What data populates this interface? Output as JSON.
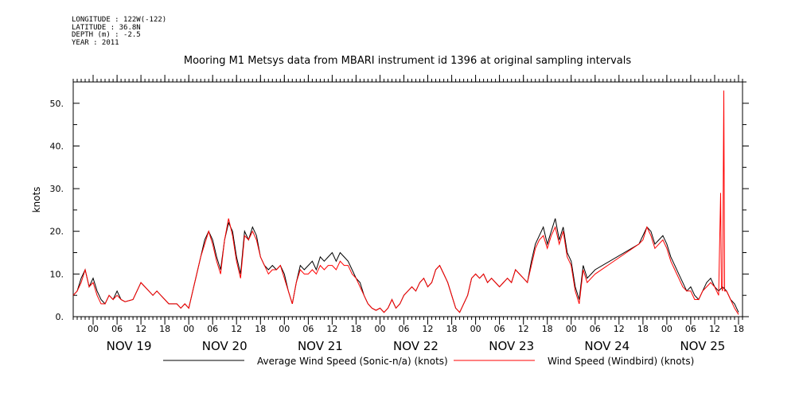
{
  "meta": {
    "longitude": "LONGITUDE : 122W(-122)",
    "latitude": "LATITUDE : 36.8N",
    "depth": "DEPTH (m) : -2.5",
    "year": "YEAR : 2011"
  },
  "chart_data": {
    "type": "line",
    "title": "Mooring M1 Metsys data from MBARI instrument id 1396 at original sampling intervals",
    "ylabel": "knots",
    "xlabel": "",
    "ylim": [
      0,
      55
    ],
    "y_ticks": [
      "0.",
      "10.",
      "20.",
      "30.",
      "40.",
      "50."
    ],
    "x_hours_labels": [
      "00",
      "06",
      "12",
      "18",
      "00",
      "06",
      "12",
      "18",
      "00",
      "06",
      "12",
      "18",
      "00",
      "06",
      "12",
      "18",
      "00",
      "06",
      "12",
      "18",
      "00",
      "06",
      "12",
      "18",
      "00",
      "06",
      "12",
      "18"
    ],
    "day_labels": [
      "NOV 19",
      "NOV 20",
      "NOV 21",
      "NOV 22",
      "NOV 23",
      "NOV 24",
      "NOV 25"
    ],
    "x_unit": "hours since NOV 19 00:00",
    "xlim": [
      -5,
      163
    ],
    "legend": [
      "Average Wind Speed (Sonic-n/a) (knots)",
      "Wind Speed (Windbird) (knots)"
    ],
    "legend_position": "bottom",
    "grid": false,
    "series": [
      {
        "name": "Average Wind Speed (Sonic-n/a) (knots)",
        "color": "#000000",
        "points": [
          [
            -5,
            5
          ],
          [
            -4,
            6
          ],
          [
            -3,
            9
          ],
          [
            -2,
            11
          ],
          [
            -1,
            7
          ],
          [
            0,
            9
          ],
          [
            1,
            6
          ],
          [
            2,
            4
          ],
          [
            3,
            3
          ],
          [
            4,
            5
          ],
          [
            5,
            4
          ],
          [
            6,
            6
          ],
          [
            7,
            4
          ],
          [
            8,
            3.5
          ],
          [
            10,
            4
          ],
          [
            11,
            6
          ],
          [
            12,
            8
          ],
          [
            13,
            7
          ],
          [
            14,
            6
          ],
          [
            15,
            5
          ],
          [
            16,
            6
          ],
          [
            17,
            5
          ],
          [
            18,
            4
          ],
          [
            19,
            3
          ],
          [
            20,
            3
          ],
          [
            21,
            3
          ],
          [
            22,
            2
          ],
          [
            23,
            3
          ],
          [
            24,
            2
          ],
          [
            25,
            6
          ],
          [
            26,
            10
          ],
          [
            27,
            14
          ],
          [
            28,
            18
          ],
          [
            29,
            20
          ],
          [
            30,
            18
          ],
          [
            31,
            14
          ],
          [
            32,
            11
          ],
          [
            33,
            18
          ],
          [
            34,
            22
          ],
          [
            35,
            20
          ],
          [
            36,
            14
          ],
          [
            37,
            10
          ],
          [
            38,
            20
          ],
          [
            39,
            18
          ],
          [
            40,
            21
          ],
          [
            41,
            19
          ],
          [
            42,
            14
          ],
          [
            43,
            12
          ],
          [
            44,
            11
          ],
          [
            45,
            12
          ],
          [
            46,
            11
          ],
          [
            47,
            12
          ],
          [
            48,
            10
          ],
          [
            49,
            6
          ],
          [
            50,
            3
          ],
          [
            51,
            8
          ],
          [
            52,
            12
          ],
          [
            53,
            11
          ],
          [
            54,
            12
          ],
          [
            55,
            13
          ],
          [
            56,
            11
          ],
          [
            57,
            14
          ],
          [
            58,
            13
          ],
          [
            59,
            14
          ],
          [
            60,
            15
          ],
          [
            61,
            13
          ],
          [
            62,
            15
          ],
          [
            63,
            14
          ],
          [
            64,
            13
          ],
          [
            65,
            11
          ],
          [
            66,
            9
          ],
          [
            67,
            8
          ],
          [
            68,
            5
          ],
          [
            69,
            3
          ],
          [
            70,
            2
          ],
          [
            71,
            1.5
          ],
          [
            72,
            2
          ],
          [
            73,
            1
          ],
          [
            74,
            2
          ],
          [
            75,
            4
          ],
          [
            76,
            2
          ],
          [
            77,
            3
          ],
          [
            78,
            5
          ],
          [
            79,
            6
          ],
          [
            80,
            7
          ],
          [
            81,
            6
          ],
          [
            82,
            8
          ],
          [
            83,
            9
          ],
          [
            84,
            7
          ],
          [
            85,
            8
          ],
          [
            86,
            11
          ],
          [
            87,
            12
          ],
          [
            88,
            10
          ],
          [
            89,
            8
          ],
          [
            90,
            5
          ],
          [
            91,
            2
          ],
          [
            92,
            1
          ],
          [
            93,
            3
          ],
          [
            94,
            5
          ],
          [
            95,
            9
          ],
          [
            96,
            10
          ],
          [
            97,
            9
          ],
          [
            98,
            10
          ],
          [
            99,
            8
          ],
          [
            100,
            9
          ],
          [
            101,
            8
          ],
          [
            102,
            7
          ],
          [
            103,
            8
          ],
          [
            104,
            9
          ],
          [
            105,
            8
          ],
          [
            106,
            11
          ],
          [
            107,
            10
          ],
          [
            108,
            9
          ],
          [
            109,
            8
          ],
          [
            110,
            13
          ],
          [
            111,
            17
          ],
          [
            112,
            19
          ],
          [
            113,
            21
          ],
          [
            114,
            17
          ],
          [
            115,
            20
          ],
          [
            116,
            23
          ],
          [
            117,
            18
          ],
          [
            118,
            21
          ],
          [
            119,
            15
          ],
          [
            120,
            13
          ],
          [
            121,
            7
          ],
          [
            122,
            4
          ],
          [
            123,
            12
          ],
          [
            124,
            9
          ],
          [
            125,
            10
          ],
          [
            126,
            11
          ],
          [
            137,
            17
          ],
          [
            138,
            19
          ],
          [
            139,
            21
          ],
          [
            140,
            20
          ],
          [
            141,
            17
          ],
          [
            142,
            18
          ],
          [
            143,
            19
          ],
          [
            144,
            17
          ],
          [
            145,
            14
          ],
          [
            146,
            12
          ],
          [
            147,
            10
          ],
          [
            148,
            8
          ],
          [
            149,
            6
          ],
          [
            150,
            7
          ],
          [
            151,
            5
          ],
          [
            152,
            4
          ],
          [
            153,
            6
          ],
          [
            154,
            8
          ],
          [
            155,
            9
          ],
          [
            156,
            7
          ],
          [
            157,
            6
          ],
          [
            158,
            7
          ],
          [
            159,
            6
          ],
          [
            160,
            4
          ],
          [
            161,
            3
          ],
          [
            162,
            1
          ]
        ]
      },
      {
        "name": "Wind Speed (Windbird) (knots)",
        "color": "#ff0000",
        "points": [
          [
            -5,
            5
          ],
          [
            -4,
            6
          ],
          [
            -3,
            8
          ],
          [
            -2,
            11
          ],
          [
            -1,
            7
          ],
          [
            0,
            8
          ],
          [
            1,
            5
          ],
          [
            2,
            3
          ],
          [
            3,
            3
          ],
          [
            4,
            5
          ],
          [
            5,
            4
          ],
          [
            6,
            5
          ],
          [
            7,
            4
          ],
          [
            8,
            3.5
          ],
          [
            10,
            4
          ],
          [
            11,
            6
          ],
          [
            12,
            8
          ],
          [
            13,
            7
          ],
          [
            14,
            6
          ],
          [
            15,
            5
          ],
          [
            16,
            6
          ],
          [
            17,
            5
          ],
          [
            18,
            4
          ],
          [
            19,
            3
          ],
          [
            20,
            3
          ],
          [
            21,
            3
          ],
          [
            22,
            2
          ],
          [
            23,
            3
          ],
          [
            24,
            2
          ],
          [
            25,
            6
          ],
          [
            26,
            10
          ],
          [
            27,
            14
          ],
          [
            28,
            17
          ],
          [
            29,
            20
          ],
          [
            30,
            17
          ],
          [
            31,
            13
          ],
          [
            32,
            10
          ],
          [
            33,
            18
          ],
          [
            34,
            23
          ],
          [
            35,
            19
          ],
          [
            36,
            13
          ],
          [
            37,
            9
          ],
          [
            38,
            19
          ],
          [
            39,
            18
          ],
          [
            40,
            20
          ],
          [
            41,
            18
          ],
          [
            42,
            14
          ],
          [
            43,
            12
          ],
          [
            44,
            10
          ],
          [
            45,
            11
          ],
          [
            46,
            11
          ],
          [
            47,
            12
          ],
          [
            48,
            9
          ],
          [
            49,
            6
          ],
          [
            50,
            3
          ],
          [
            51,
            8
          ],
          [
            52,
            11
          ],
          [
            53,
            10
          ],
          [
            54,
            10
          ],
          [
            55,
            11
          ],
          [
            56,
            10
          ],
          [
            57,
            12
          ],
          [
            58,
            11
          ],
          [
            59,
            12
          ],
          [
            60,
            12
          ],
          [
            61,
            11
          ],
          [
            62,
            13
          ],
          [
            63,
            12
          ],
          [
            64,
            12
          ],
          [
            65,
            10
          ],
          [
            66,
            9
          ],
          [
            67,
            7
          ],
          [
            68,
            5
          ],
          [
            69,
            3
          ],
          [
            70,
            2
          ],
          [
            71,
            1.5
          ],
          [
            72,
            2
          ],
          [
            73,
            1
          ],
          [
            74,
            2
          ],
          [
            75,
            4
          ],
          [
            76,
            2
          ],
          [
            77,
            3
          ],
          [
            78,
            5
          ],
          [
            79,
            6
          ],
          [
            80,
            7
          ],
          [
            81,
            6
          ],
          [
            82,
            8
          ],
          [
            83,
            9
          ],
          [
            84,
            7
          ],
          [
            85,
            8
          ],
          [
            86,
            11
          ],
          [
            87,
            12
          ],
          [
            88,
            10
          ],
          [
            89,
            8
          ],
          [
            90,
            5
          ],
          [
            91,
            2
          ],
          [
            92,
            1
          ],
          [
            93,
            3
          ],
          [
            94,
            5
          ],
          [
            95,
            9
          ],
          [
            96,
            10
          ],
          [
            97,
            9
          ],
          [
            98,
            10
          ],
          [
            99,
            8
          ],
          [
            100,
            9
          ],
          [
            101,
            8
          ],
          [
            102,
            7
          ],
          [
            103,
            8
          ],
          [
            104,
            9
          ],
          [
            105,
            8
          ],
          [
            106,
            11
          ],
          [
            107,
            10
          ],
          [
            108,
            9
          ],
          [
            109,
            8
          ],
          [
            110,
            12
          ],
          [
            111,
            16
          ],
          [
            112,
            18
          ],
          [
            113,
            19
          ],
          [
            114,
            16
          ],
          [
            115,
            19
          ],
          [
            116,
            21
          ],
          [
            117,
            17
          ],
          [
            118,
            20
          ],
          [
            119,
            14
          ],
          [
            120,
            12
          ],
          [
            121,
            6
          ],
          [
            122,
            3
          ],
          [
            123,
            11
          ],
          [
            124,
            8
          ],
          [
            125,
            9
          ],
          [
            126,
            10
          ],
          [
            137,
            17
          ],
          [
            138,
            18
          ],
          [
            139,
            21
          ],
          [
            140,
            19
          ],
          [
            141,
            16
          ],
          [
            142,
            17
          ],
          [
            143,
            18
          ],
          [
            144,
            16
          ],
          [
            145,
            13
          ],
          [
            146,
            11
          ],
          [
            147,
            9
          ],
          [
            148,
            7
          ],
          [
            149,
            6
          ],
          [
            150,
            6
          ],
          [
            151,
            4
          ],
          [
            152,
            4
          ],
          [
            153,
            6
          ],
          [
            154,
            7
          ],
          [
            155,
            8
          ],
          [
            156,
            7
          ],
          [
            157,
            5
          ],
          [
            157.5,
            29
          ],
          [
            157.7,
            7
          ],
          [
            158,
            6
          ],
          [
            158.3,
            53
          ],
          [
            158.5,
            6
          ],
          [
            159,
            6
          ],
          [
            160,
            4
          ],
          [
            161,
            2
          ],
          [
            162,
            0.5
          ]
        ]
      }
    ]
  }
}
